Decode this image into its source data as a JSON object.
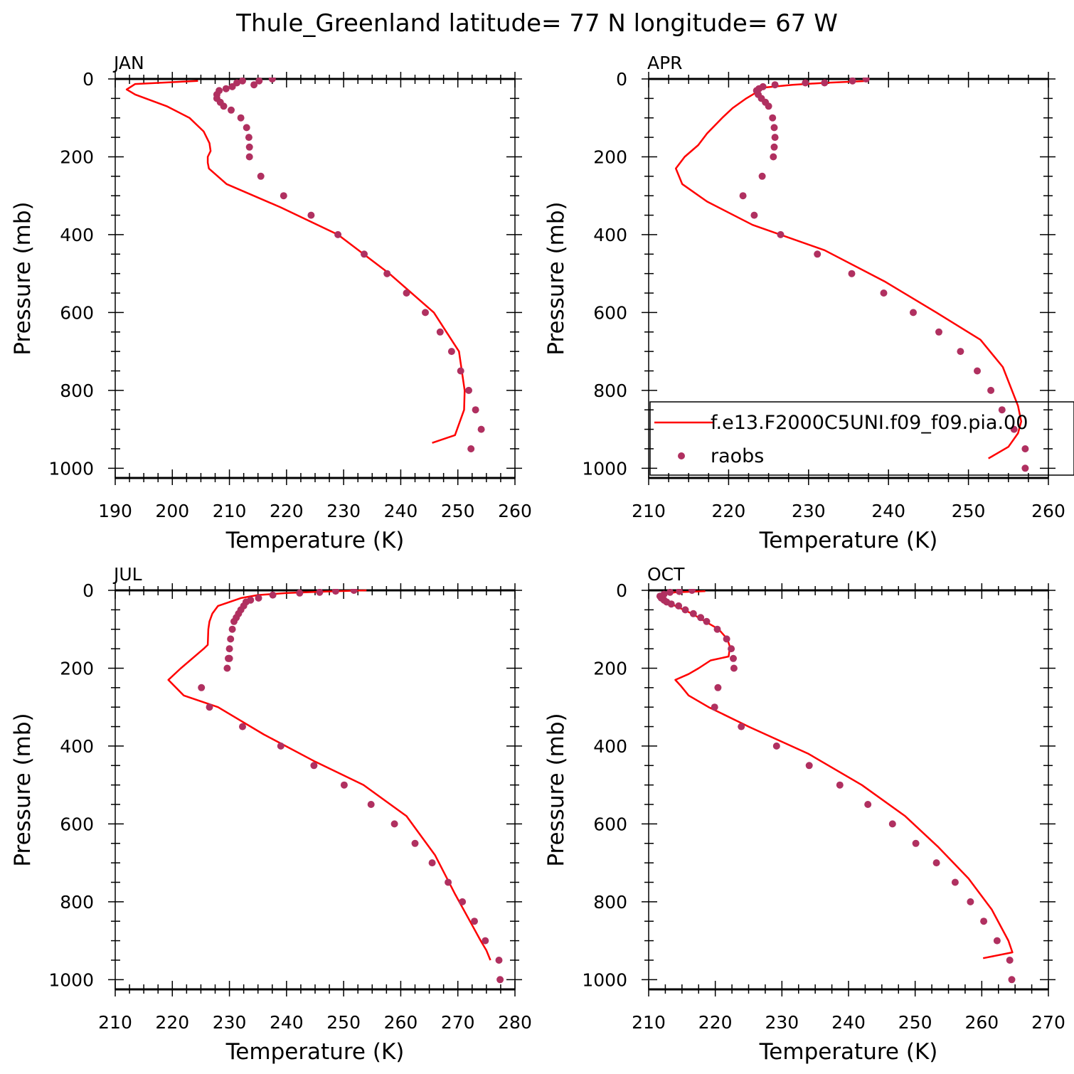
{
  "page_title": "Thule_Greenland  latitude= 77 N longitude= 67 W",
  "legend": {
    "model_label": "f.e13.F2000C5UNI.f09_f09.pia.00",
    "obs_label": "raobs"
  },
  "colors": {
    "model_line": "#ff0000",
    "obs_points": "#b03060",
    "axes": "#000000"
  },
  "chart_data": [
    {
      "type": "line",
      "title": "JAN",
      "xlabel": "Temperature (K)",
      "ylabel": "Pressure (mb)",
      "xlim": [
        190,
        260
      ],
      "ylim": [
        0,
        1025
      ],
      "y_inverted": true,
      "xticks": [
        190,
        200,
        210,
        220,
        230,
        240,
        250,
        260
      ],
      "yticks": [
        0,
        200,
        400,
        600,
        800,
        1000
      ],
      "legend": false,
      "series": [
        {
          "kind": "line",
          "x": [
            204.5,
            193.5,
            192,
            193.5,
            199,
            203,
            205.5,
            206.5,
            206.7,
            206.2,
            206.2,
            206.4,
            209.5,
            219,
            229,
            238,
            245.8,
            250.2,
            251.2,
            251.1,
            249.5,
            245.5
          ],
          "y": [
            5,
            13,
            27,
            40,
            70,
            100,
            135,
            165,
            185,
            200,
            215,
            230,
            270,
            330,
            400,
            500,
            600,
            700,
            800,
            850,
            915,
            935
          ]
        },
        {
          "kind": "scatter",
          "x": [
            217.5,
            215.2,
            214.3,
            212.3,
            211.3,
            210.5,
            209.4,
            208.2,
            207.8,
            207.8,
            208.4,
            209,
            210.3,
            212,
            213,
            213.4,
            213.5,
            213.5,
            215.5,
            219.5,
            224.3,
            229,
            233.6,
            237.6,
            241,
            244.3,
            246.9,
            248.9,
            250.5,
            251.9,
            253.1,
            254.1,
            252.3
          ],
          "y": [
            0,
            5,
            15,
            5,
            10,
            20,
            25,
            30,
            40,
            50,
            60,
            70,
            80,
            100,
            125,
            150,
            175,
            200,
            250,
            300,
            350,
            400,
            450,
            500,
            550,
            600,
            650,
            700,
            750,
            800,
            850,
            900,
            950
          ]
        }
      ]
    },
    {
      "type": "line",
      "title": "APR",
      "xlabel": "Temperature (K)",
      "ylabel": "Pressure (mb)",
      "xlim": [
        210,
        260
      ],
      "ylim": [
        0,
        1025
      ],
      "y_inverted": true,
      "xticks": [
        210,
        220,
        230,
        240,
        250,
        260
      ],
      "yticks": [
        0,
        200,
        400,
        600,
        800,
        1000
      ],
      "legend": true,
      "legend_position": "lower-right",
      "series": [
        {
          "kind": "line",
          "x": [
            237.5,
            232,
            228,
            224.5,
            222.2,
            220.5,
            219.2,
            217.3,
            216.2,
            214.5,
            213.4,
            214.2,
            217.3,
            223,
            232,
            239.5,
            246,
            251.5,
            254.3,
            256.2,
            256.6,
            256.2,
            255,
            252.5
          ],
          "y": [
            5,
            10,
            15,
            22,
            50,
            75,
            100,
            140,
            170,
            200,
            230,
            270,
            315,
            375,
            440,
            520,
            600,
            670,
            740,
            840,
            880,
            910,
            945,
            975
          ]
        },
        {
          "kind": "scatter",
          "x": [
            237.2,
            235.5,
            232,
            229.6,
            225.8,
            224.3,
            223.8,
            223.5,
            223.7,
            224.1,
            224.6,
            225,
            225.5,
            225.7,
            225.8,
            225.7,
            225.6,
            224.2,
            221.8,
            223.2,
            226.5,
            231.1,
            235.4,
            239.4,
            243.1,
            246.3,
            249,
            251.1,
            252.8,
            254.2,
            255.7,
            257.1,
            257.1
          ],
          "y": [
            0,
            5,
            10,
            10,
            15,
            20,
            25,
            30,
            40,
            50,
            60,
            70,
            100,
            125,
            150,
            175,
            200,
            250,
            300,
            350,
            400,
            450,
            500,
            550,
            600,
            650,
            700,
            750,
            800,
            850,
            900,
            950,
            1000
          ]
        }
      ]
    },
    {
      "type": "line",
      "title": "JUL",
      "xlabel": "Temperature (K)",
      "ylabel": "Pressure (mb)",
      "xlim": [
        210,
        280
      ],
      "ylim": [
        0,
        1025
      ],
      "y_inverted": true,
      "xticks": [
        210,
        220,
        230,
        240,
        250,
        260,
        270,
        280
      ],
      "yticks": [
        0,
        200,
        400,
        600,
        800,
        1000
      ],
      "legend": false,
      "series": [
        {
          "kind": "line",
          "x": [
            254,
            247,
            240,
            235,
            232,
            230,
            228,
            227,
            226.5,
            226.3,
            226.2,
            225.5,
            221.5,
            219.3,
            222,
            228,
            236,
            245,
            253.5,
            261,
            266,
            269.5,
            272.5,
            274,
            275,
            275.7
          ],
          "y": [
            0,
            3,
            7,
            12,
            20,
            30,
            40,
            60,
            80,
            100,
            140,
            150,
            200,
            230,
            270,
            300,
            370,
            440,
            500,
            580,
            680,
            780,
            860,
            900,
            925,
            950
          ]
        },
        {
          "kind": "scatter",
          "x": [
            251.8,
            248.6,
            245.8,
            242.3,
            237.6,
            235.1,
            233.7,
            232.9,
            232.5,
            232,
            231.6,
            231.2,
            230.8,
            230.5,
            230.2,
            230,
            230,
            229.9,
            229.8,
            229.6,
            225.1,
            226.5,
            232.3,
            239,
            244.8,
            250.1,
            254.8,
            258.9,
            262.5,
            265.5,
            268.3,
            270.8,
            272.9,
            274.8,
            277.2,
            277.4
          ],
          "y": [
            0,
            2,
            5,
            7,
            12,
            20,
            25,
            30,
            40,
            50,
            60,
            70,
            80,
            100,
            125,
            150,
            175,
            175,
            175,
            200,
            250,
            300,
            350,
            400,
            450,
            500,
            550,
            600,
            650,
            700,
            750,
            800,
            850,
            900,
            950,
            1000
          ]
        }
      ]
    },
    {
      "type": "line",
      "title": "OCT",
      "xlabel": "Temperature (K)",
      "ylabel": "Pressure (mb)",
      "xlim": [
        210,
        270
      ],
      "ylim": [
        0,
        1025
      ],
      "y_inverted": true,
      "xticks": [
        210,
        220,
        230,
        240,
        250,
        260,
        270
      ],
      "yticks": [
        0,
        200,
        400,
        600,
        800,
        1000
      ],
      "legend": false,
      "series": [
        {
          "kind": "line",
          "x": [
            218.5,
            214,
            211.5,
            212,
            214,
            216.5,
            218.5,
            220.5,
            221.8,
            222.2,
            222,
            219.3,
            217.5,
            216,
            214,
            214.8,
            216,
            219,
            225,
            234,
            242,
            248.5,
            253.5,
            258,
            261.5,
            264,
            264.6,
            260.2
          ],
          "y": [
            2,
            5,
            10,
            25,
            40,
            60,
            80,
            100,
            125,
            145,
            170,
            180,
            200,
            215,
            230,
            245,
            270,
            300,
            350,
            420,
            500,
            580,
            660,
            740,
            820,
            900,
            930,
            945
          ]
        },
        {
          "kind": "scatter",
          "x": [
            216.5,
            214.6,
            213.2,
            212.3,
            211.7,
            211.9,
            212.3,
            212.7,
            213.4,
            214.5,
            215.5,
            216.7,
            217.8,
            218.7,
            220.3,
            221.7,
            222.4,
            222.7,
            222.8,
            220.4,
            219.9,
            223.9,
            229.2,
            234.1,
            238.7,
            242.9,
            246.6,
            250.1,
            253.2,
            256,
            258.3,
            260.3,
            262.3,
            264.2,
            264.5
          ],
          "y": [
            0,
            3,
            5,
            10,
            15,
            20,
            25,
            30,
            35,
            40,
            50,
            60,
            70,
            80,
            100,
            125,
            150,
            175,
            200,
            250,
            300,
            350,
            400,
            450,
            500,
            550,
            600,
            650,
            700,
            750,
            800,
            850,
            900,
            950,
            1000
          ]
        }
      ]
    }
  ]
}
